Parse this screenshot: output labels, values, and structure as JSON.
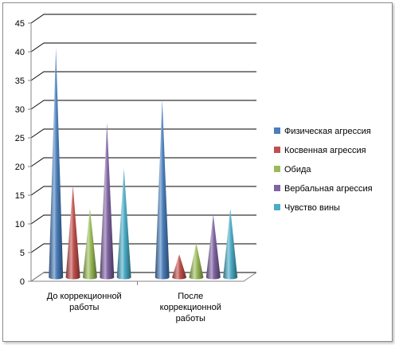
{
  "chart_data": {
    "type": "bar",
    "shape": "cone",
    "title": "",
    "xlabel": "",
    "ylabel": "",
    "ylim": [
      0,
      45
    ],
    "yticks": [
      0,
      5,
      10,
      15,
      20,
      25,
      30,
      35,
      40,
      45
    ],
    "grid": true,
    "legend_position": "right",
    "categories": [
      [
        "До коррекционной",
        "работы"
      ],
      [
        "После",
        "коррекционной",
        "работы"
      ]
    ],
    "series": [
      {
        "name": "Физическая агрессия",
        "color": "#4a7ebb",
        "values": [
          40,
          31
        ]
      },
      {
        "name": "Косвенная агрессия",
        "color": "#c0504d",
        "values": [
          16,
          4
        ]
      },
      {
        "name": "Обида",
        "color": "#9bbb59",
        "values": [
          12,
          6
        ]
      },
      {
        "name": "Вербальная агрессия",
        "color": "#8064a2",
        "values": [
          27,
          11
        ]
      },
      {
        "name": "Чувство вины",
        "color": "#4bacc6",
        "values": [
          19,
          12
        ]
      }
    ]
  }
}
